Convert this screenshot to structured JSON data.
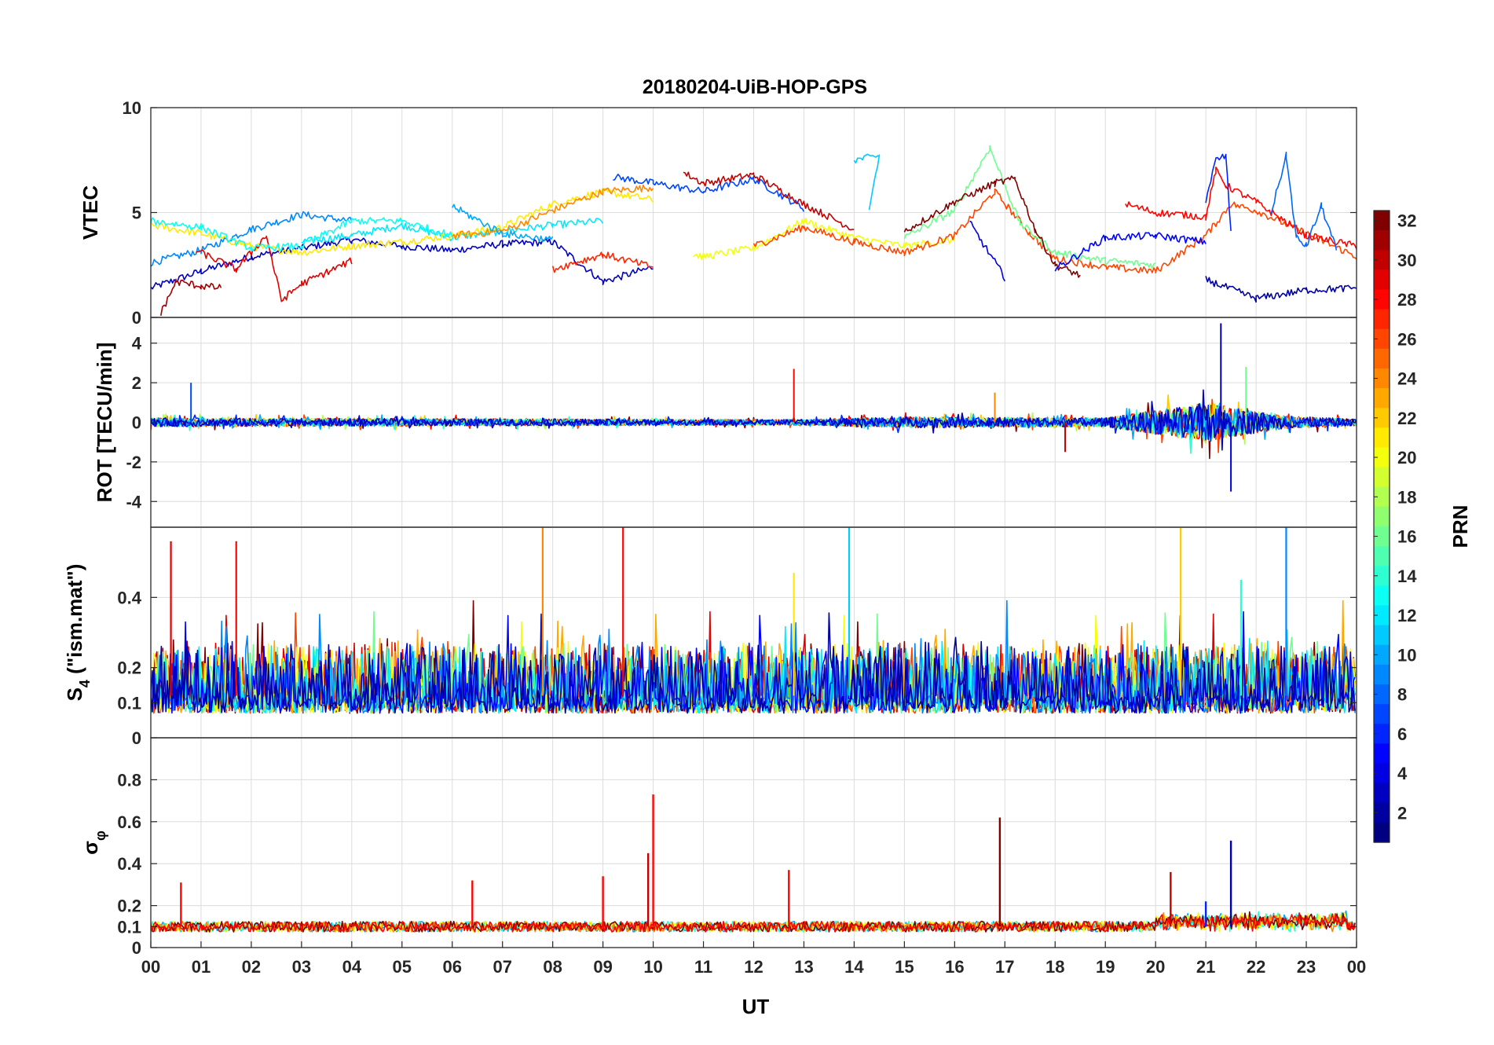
{
  "chart_data": {
    "type": "line",
    "title": "20180204-UiB-HOP-GPS",
    "xlabel": "UT",
    "x_ticks": [
      "00",
      "01",
      "02",
      "03",
      "04",
      "05",
      "06",
      "07",
      "08",
      "09",
      "10",
      "11",
      "12",
      "13",
      "14",
      "15",
      "16",
      "17",
      "18",
      "19",
      "20",
      "21",
      "22",
      "23",
      "00"
    ],
    "xlim": [
      0,
      24
    ],
    "panels": [
      {
        "id": "vtec",
        "ylabel": "VTEC",
        "ylim": [
          0,
          10
        ],
        "y_ticks": [
          0,
          5,
          10
        ],
        "y_tick_labels": [
          "0",
          "5",
          "10"
        ],
        "series": [
          {
            "prn": 3,
            "points": [
              [
                0,
                1.4
              ],
              [
                1,
                2.2
              ],
              [
                2,
                2.9
              ],
              [
                3,
                3.3
              ],
              [
                4,
                3.7
              ],
              [
                5,
                3.4
              ],
              [
                6,
                3.2
              ],
              [
                7,
                3.5
              ],
              [
                8,
                3.6
              ],
              [
                9,
                1.7
              ],
              [
                10,
                2.4
              ]
            ]
          },
          {
            "prn": 9,
            "points": [
              [
                0,
                2.6
              ],
              [
                1,
                3.2
              ],
              [
                2,
                4.2
              ],
              [
                3,
                4.9
              ],
              [
                4,
                4.6
              ]
            ]
          },
          {
            "prn": 12,
            "points": [
              [
                3,
                3.6
              ],
              [
                4,
                3.9
              ],
              [
                5,
                4.4
              ],
              [
                6,
                3.8
              ],
              [
                7,
                4.1
              ],
              [
                8,
                4.4
              ],
              [
                9,
                4.6
              ]
            ]
          },
          {
            "prn": 21,
            "points": [
              [
                0,
                4.4
              ],
              [
                1,
                4.0
              ],
              [
                2,
                3.4
              ],
              [
                3,
                3.1
              ],
              [
                4,
                3.4
              ],
              [
                5,
                3.6
              ],
              [
                6,
                3.9
              ],
              [
                7,
                4.3
              ],
              [
                8,
                5.4
              ],
              [
                9,
                6.0
              ],
              [
                10,
                5.6
              ]
            ]
          },
          {
            "prn": 24,
            "points": [
              [
                6,
                3.9
              ],
              [
                7,
                4.1
              ],
              [
                8,
                5.1
              ],
              [
                9,
                6.0
              ],
              [
                10,
                6.2
              ]
            ]
          },
          {
            "prn": 7,
            "points": [
              [
                9.2,
                6.7
              ],
              [
                10,
                6.4
              ],
              [
                11,
                6.0
              ],
              [
                12,
                6.6
              ],
              [
                13,
                5.2
              ]
            ]
          },
          {
            "prn": 30,
            "points": [
              [
                10.6,
                6.9
              ],
              [
                11,
                6.4
              ],
              [
                12,
                6.8
              ],
              [
                13,
                5.4
              ],
              [
                14,
                4.2
              ]
            ]
          },
          {
            "prn": 20,
            "points": [
              [
                10.8,
                3.0
              ],
              [
                11,
                2.9
              ],
              [
                12,
                3.3
              ],
              [
                13,
                4.6
              ],
              [
                14,
                3.8
              ],
              [
                15,
                3.4
              ],
              [
                16,
                3.7
              ]
            ]
          },
          {
            "prn": 11,
            "points": [
              [
                14,
                7.5
              ],
              [
                14.5,
                7.7
              ],
              [
                14.3,
                5.2
              ]
            ]
          },
          {
            "prn": 26,
            "points": [
              [
                12,
                3.4
              ],
              [
                13,
                4.3
              ],
              [
                14,
                3.6
              ],
              [
                15,
                3.1
              ],
              [
                16,
                3.9
              ],
              [
                16.8,
                6.0
              ],
              [
                17.5,
                4.0
              ],
              [
                18,
                2.8
              ],
              [
                19,
                2.4
              ],
              [
                20,
                2.2
              ],
              [
                21,
                3.9
              ],
              [
                21.5,
                5.4
              ],
              [
                22,
                5.1
              ],
              [
                23,
                4.0
              ],
              [
                24,
                2.9
              ]
            ]
          },
          {
            "prn": 16,
            "points": [
              [
                15,
                3.8
              ],
              [
                16,
                5.1
              ],
              [
                16.7,
                8.1
              ],
              [
                17.3,
                4.5
              ],
              [
                18,
                3.1
              ],
              [
                19,
                2.7
              ],
              [
                20,
                2.5
              ]
            ]
          },
          {
            "prn": 32,
            "points": [
              [
                15,
                4.1
              ],
              [
                16,
                5.5
              ],
              [
                16.8,
                6.4
              ],
              [
                17.2,
                6.6
              ],
              [
                17.6,
                4.2
              ],
              [
                18,
                2.5
              ],
              [
                18.5,
                2.0
              ]
            ]
          },
          {
            "prn": 4,
            "points": [
              [
                16.3,
                4.5
              ],
              [
                17,
                1.9
              ]
            ]
          },
          {
            "prn": 5,
            "points": [
              [
                18,
                2.3
              ],
              [
                19,
                3.8
              ],
              [
                20,
                3.9
              ],
              [
                21,
                3.6
              ]
            ]
          },
          {
            "prn": 28,
            "points": [
              [
                19.4,
                5.4
              ],
              [
                20,
                5.0
              ],
              [
                21,
                4.8
              ],
              [
                21.2,
                7.0
              ],
              [
                21.4,
                6.3
              ],
              [
                22,
                5.5
              ],
              [
                23,
                3.9
              ],
              [
                24,
                3.4
              ]
            ]
          },
          {
            "prn": 6,
            "points": [
              [
                21,
                5.6
              ],
              [
                21.2,
                7.5
              ],
              [
                21.4,
                7.7
              ],
              [
                21.5,
                4.0
              ]
            ]
          },
          {
            "prn": 8,
            "points": [
              [
                22.3,
                5.0
              ],
              [
                22.6,
                7.7
              ],
              [
                22.8,
                3.8
              ],
              [
                23,
                3.4
              ],
              [
                23.3,
                5.3
              ],
              [
                23.6,
                3.2
              ]
            ]
          },
          {
            "prn": 2,
            "points": [
              [
                21,
                1.8
              ],
              [
                22,
                0.9
              ],
              [
                23,
                1.3
              ],
              [
                24,
                1.4
              ]
            ]
          },
          {
            "prn": 31,
            "points": [
              [
                0.2,
                0.2
              ],
              [
                0.5,
                1.7
              ],
              [
                1,
                1.5
              ],
              [
                1.4,
                1.4
              ]
            ]
          },
          {
            "prn": 29,
            "points": [
              [
                0.9,
                3.2
              ],
              [
                1.7,
                2.3
              ],
              [
                2.3,
                3.9
              ],
              [
                2.6,
                0.8
              ],
              [
                3,
                1.6
              ],
              [
                4,
                2.7
              ]
            ]
          },
          {
            "prn": 13,
            "points": [
              [
                0,
                4.6
              ],
              [
                1,
                4.3
              ],
              [
                2,
                3.3
              ],
              [
                3,
                3.4
              ],
              [
                4,
                4.6
              ],
              [
                5,
                4.6
              ],
              [
                6,
                3.9
              ]
            ]
          },
          {
            "prn": 27,
            "points": [
              [
                8,
                2.3
              ],
              [
                9,
                3.0
              ],
              [
                10,
                2.4
              ]
            ]
          },
          {
            "prn": 10,
            "points": [
              [
                6,
                5.3
              ],
              [
                7,
                4.0
              ],
              [
                8,
                3.7
              ]
            ]
          }
        ]
      },
      {
        "id": "rot",
        "ylabel": "ROT [TECU/min]",
        "ylim": [
          -5.3,
          5.3
        ],
        "y_ticks": [
          -4,
          -2,
          0,
          2,
          4
        ],
        "y_tick_labels": [
          "-4",
          "-2",
          "0",
          "2",
          "4"
        ],
        "spikes": [
          {
            "prn": 7,
            "t": 0.8,
            "value": 2.0
          },
          {
            "prn": 28,
            "t": 12.8,
            "value": 2.7
          },
          {
            "prn": 2,
            "t": 21.3,
            "value": 5.0
          },
          {
            "prn": 4,
            "t": 21.5,
            "value": -3.5
          },
          {
            "prn": 16,
            "t": 21.8,
            "value": 2.8
          },
          {
            "prn": 30,
            "t": 18.2,
            "value": -1.5
          },
          {
            "prn": 24,
            "t": 16.8,
            "value": 1.5
          }
        ],
        "noise_amplitude": [
          [
            0,
            0.4
          ],
          [
            13,
            0.25
          ],
          [
            15,
            0.5
          ],
          [
            19,
            0.4
          ],
          [
            21,
            1.8
          ],
          [
            22.5,
            0.6
          ],
          [
            24,
            0.3
          ]
        ]
      },
      {
        "id": "s4",
        "ylabel": "S4 (\"ism.mat\")",
        "ylabel_main": "S",
        "ylabel_sub": "4",
        "ylabel_rest": " (\"ism.mat\")",
        "ylim": [
          0,
          0.6
        ],
        "y_ticks": [
          0,
          0.1,
          0.2,
          0.4
        ],
        "y_tick_labels": [
          "0",
          "0.1",
          "0.2",
          "0.4"
        ],
        "spikes": [
          {
            "prn": 29,
            "t": 0.4,
            "value": 0.56
          },
          {
            "prn": 28,
            "t": 1.7,
            "value": 0.56
          },
          {
            "prn": 24,
            "t": 7.8,
            "value": 0.6
          },
          {
            "prn": 28,
            "t": 9.4,
            "value": 0.6
          },
          {
            "prn": 11,
            "t": 13.9,
            "value": 0.6
          },
          {
            "prn": 22,
            "t": 20.5,
            "value": 0.6
          },
          {
            "prn": 9,
            "t": 22.6,
            "value": 0.6
          },
          {
            "prn": 21,
            "t": 12.8,
            "value": 0.47
          },
          {
            "prn": 14,
            "t": 21.7,
            "value": 0.45
          }
        ]
      },
      {
        "id": "sigma",
        "ylabel": "σφ",
        "ylabel_main": "σ",
        "ylabel_sub": "φ",
        "ylim": [
          0,
          1.0
        ],
        "y_ticks": [
          0,
          0.1,
          0.2,
          0.4,
          0.6,
          0.8
        ],
        "y_tick_labels": [
          "0",
          "0.1",
          "0.2",
          "0.4",
          "0.6",
          "0.8"
        ],
        "spikes": [
          {
            "prn": 28,
            "t": 10.0,
            "value": 0.73
          },
          {
            "prn": 32,
            "t": 16.9,
            "value": 0.62
          },
          {
            "prn": 2,
            "t": 21.5,
            "value": 0.51
          },
          {
            "prn": 30,
            "t": 9.9,
            "value": 0.45
          },
          {
            "prn": 28,
            "t": 12.7,
            "value": 0.37
          },
          {
            "prn": 28,
            "t": 9.0,
            "value": 0.34
          },
          {
            "prn": 28,
            "t": 0.6,
            "value": 0.31
          },
          {
            "prn": 28,
            "t": 6.4,
            "value": 0.32
          },
          {
            "prn": 30,
            "t": 20.3,
            "value": 0.36
          },
          {
            "prn": 6,
            "t": 21.0,
            "value": 0.22
          }
        ]
      }
    ],
    "colorbar": {
      "label": "PRN",
      "min": 1,
      "max": 32,
      "ticks": [
        2,
        4,
        6,
        8,
        10,
        12,
        14,
        16,
        18,
        20,
        22,
        24,
        26,
        28,
        30,
        32
      ],
      "tick_labels": [
        "2",
        "4",
        "6",
        "8",
        "10",
        "12",
        "14",
        "16",
        "18",
        "20",
        "22",
        "24",
        "26",
        "28",
        "30",
        "32"
      ],
      "colormap": "jet"
    }
  }
}
